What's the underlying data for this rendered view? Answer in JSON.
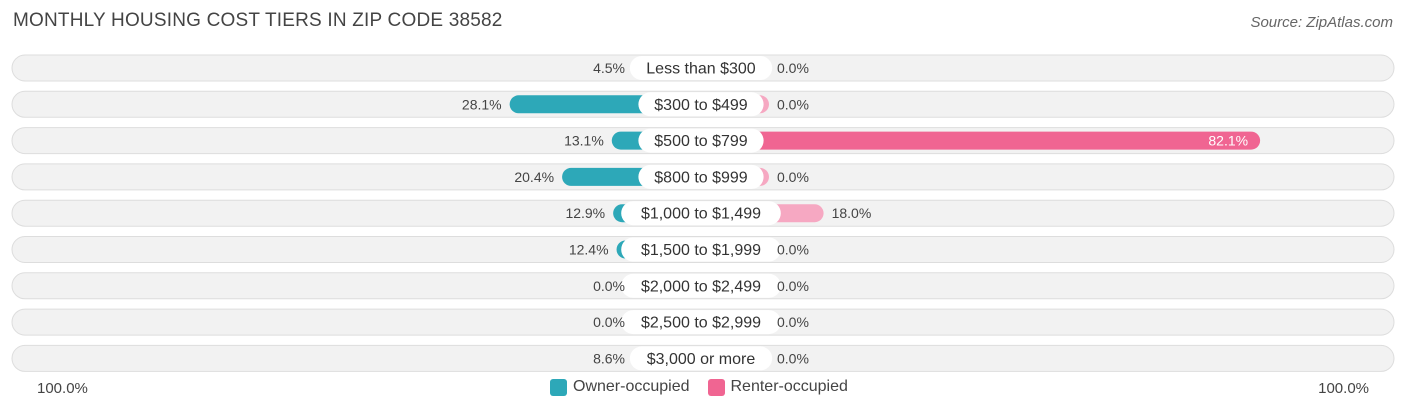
{
  "title": "MONTHLY HOUSING COST TIERS IN ZIP CODE 38582",
  "source": "Source: ZipAtlas.com",
  "axis": {
    "left_label": "100.0%",
    "right_label": "100.0%"
  },
  "legend": {
    "owner_label": "Owner-occupied",
    "renter_label": "Renter-occupied"
  },
  "colors": {
    "owner": "#2da8b8",
    "owner_light": "#8fd0d8",
    "renter": "#f06592",
    "renter_light": "#f6a8c2",
    "row_bg": "#f2f2f2",
    "row_border": "#dddddd"
  },
  "chart_data": {
    "type": "bar",
    "orientation": "horizontal-diverging",
    "categories": [
      "Less than $300",
      "$300 to $499",
      "$500 to $799",
      "$800 to $999",
      "$1,000 to $1,499",
      "$1,500 to $1,999",
      "$2,000 to $2,499",
      "$2,500 to $2,999",
      "$3,000 or more"
    ],
    "series": [
      {
        "name": "Owner-occupied",
        "values": [
          4.5,
          28.1,
          13.1,
          20.4,
          12.9,
          12.4,
          0.0,
          0.0,
          8.6
        ],
        "labels": [
          "4.5%",
          "28.1%",
          "13.1%",
          "20.4%",
          "12.9%",
          "12.4%",
          "0.0%",
          "0.0%",
          "8.6%"
        ]
      },
      {
        "name": "Renter-occupied",
        "values": [
          0.0,
          0.0,
          82.1,
          0.0,
          18.0,
          0.0,
          0.0,
          0.0,
          0.0
        ],
        "labels": [
          "0.0%",
          "0.0%",
          "82.1%",
          "0.0%",
          "18.0%",
          "0.0%",
          "0.0%",
          "0.0%",
          "0.0%"
        ]
      }
    ],
    "xlim": [
      -100,
      100
    ]
  }
}
